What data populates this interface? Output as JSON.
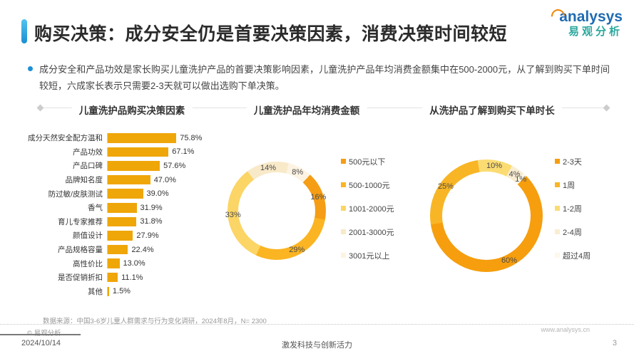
{
  "header": {
    "title": "购买决策：成分安全仍是首要决策因素，消费决策时间较短",
    "logo_brand": "analysys",
    "logo_cn": "易观分析"
  },
  "summary": "成分安全和产品功效是家长购买儿童洗护产品的首要决策影响因素，儿童洗护产品年均消费金额集中在500-2000元，从了解到购买下单时间较短，六成家长表示只需要2-3天就可以做出选购下单决策。",
  "colors": {
    "accent_blue": "#1e8fd5",
    "bar_gold": "#efa608",
    "logo_blue": "#1e6bb2",
    "logo_teal": "#2aa79d",
    "logo_orange": "#f08300"
  },
  "chart_data": [
    {
      "type": "bar",
      "title": "儿童洗护品购买决策因素",
      "orientation": "horizontal",
      "categories": [
        "成分天然安全配方温和",
        "产品功效",
        "产品口碑",
        "品牌知名度",
        "防过敏/皮肤测试",
        "香气",
        "育儿专家推荐",
        "颜值设计",
        "产品规格容量",
        "高性价比",
        "是否促销折扣",
        "其他"
      ],
      "values": [
        75.8,
        67.1,
        57.6,
        47.0,
        39.0,
        31.9,
        31.8,
        27.9,
        22.4,
        13.0,
        11.1,
        1.5
      ],
      "value_labels": [
        "75.8%",
        "67.1%",
        "57.6%",
        "47.0%",
        "39.0%",
        "31.9%",
        "31.8%",
        "27.9%",
        "22.4%",
        "13.0%",
        "11.1%",
        "1.5%"
      ],
      "bar_color": "#efa608",
      "xlim": [
        0,
        100
      ],
      "grid": false
    },
    {
      "type": "pie",
      "title": "儿童洗护品年均消费金额",
      "donut": true,
      "start_angle_deg": 14,
      "draw_order": [
        4,
        0,
        1,
        2,
        3
      ],
      "legend_position": "right",
      "segments": [
        {
          "label": "500元以下",
          "value": 16,
          "display": "16%",
          "color": "#f59d15"
        },
        {
          "label": "500-1000元",
          "value": 29,
          "display": "29%",
          "color": "#fbb422"
        },
        {
          "label": "1001-2000元",
          "value": 33,
          "display": "33%",
          "color": "#fbd565"
        },
        {
          "label": "2001-3000元",
          "value": 14,
          "display": "14%",
          "color": "#f8e9c8"
        },
        {
          "label": "3001元以上",
          "value": 8,
          "display": "8%",
          "color": "#fcf3e2"
        }
      ]
    },
    {
      "type": "pie",
      "title": "从洗护品了解到购买下单时长",
      "donut": true,
      "start_angle_deg": -9,
      "draw_order": [
        2,
        3,
        4,
        0,
        1
      ],
      "legend_position": "right",
      "segments": [
        {
          "label": "2-3天",
          "value": 60,
          "display": "60%",
          "color": "#f69e0e"
        },
        {
          "label": "1周",
          "value": 25,
          "display": "25%",
          "color": "#f8b525"
        },
        {
          "label": "1-2周",
          "value": 10,
          "display": "10%",
          "color": "#fbdc73"
        },
        {
          "label": "2-4周",
          "value": 4,
          "display": "4%",
          "color": "#f9edd2"
        },
        {
          "label": "超过4周",
          "value": 1,
          "display": "1%",
          "color": "#fdf8ec"
        }
      ]
    }
  ],
  "footer": {
    "source": "数据来源：中国3-6岁儿童人群需求与行为变化调研，2024年8月，N= 2300",
    "copyright": "© 易观分析",
    "website": "www.analysys.cn",
    "date": "2024/10/14",
    "slogan": "激发科技与创新活力",
    "page": "3"
  }
}
